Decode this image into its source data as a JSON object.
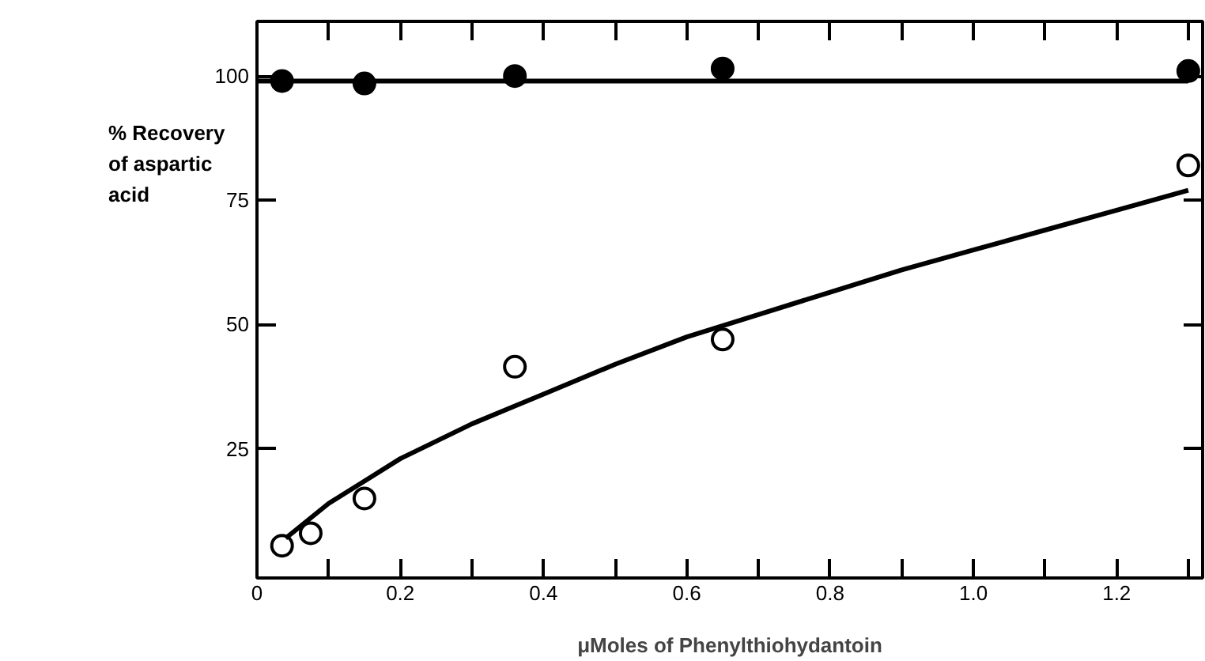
{
  "chart_data": {
    "type": "scatter",
    "xlabel": "μMoles of Phenylthiohydantoin",
    "ylabel": "% Recovery of aspartic acid",
    "xlim": [
      0,
      1.32
    ],
    "ylim": [
      -1,
      111
    ],
    "xticks": [
      0,
      {
        "value": 0.1,
        "label": null
      },
      0.2,
      {
        "value": 0.3,
        "label": null
      },
      0.4,
      {
        "value": 0.5,
        "label": null
      },
      0.6,
      {
        "value": 0.7,
        "label": null
      },
      0.8,
      {
        "value": 0.9,
        "label": null
      },
      {
        "value": 1.0,
        "label": "1.0"
      },
      {
        "value": 1.1,
        "label": null
      },
      1.2,
      {
        "value": 1.3,
        "label": null
      }
    ],
    "yticks": [
      25,
      50,
      75,
      100
    ],
    "grid": false,
    "series": [
      {
        "marker": "circle",
        "color": "#000000",
        "x": [
          0.035,
          0.15,
          0.36,
          0.65,
          1.3
        ],
        "values": [
          99,
          98.5,
          100,
          101.5,
          101
        ]
      },
      {
        "type": "line",
        "color": "#000000",
        "x": [
          0,
          1.3
        ],
        "values": [
          99,
          99
        ]
      },
      {
        "marker": "circle_open",
        "color": "#000000",
        "x": [
          0.035,
          0.075,
          0.15,
          0.36,
          0.65,
          1.3
        ],
        "values": [
          5.5,
          8,
          15,
          41.5,
          47,
          82
        ]
      },
      {
        "type": "line",
        "color": "#000000",
        "x": [
          0.04,
          0.07,
          0.1,
          0.15,
          0.2,
          0.25,
          0.3,
          0.35,
          0.4,
          0.5,
          0.6,
          0.7,
          0.8,
          0.9,
          1.0,
          1.1,
          1.2,
          1.3
        ],
        "values": [
          7,
          10.5,
          14,
          18.5,
          23,
          26.5,
          30,
          33,
          36,
          42,
          47.5,
          52,
          56.5,
          61,
          65,
          69,
          73,
          77
        ]
      }
    ]
  }
}
